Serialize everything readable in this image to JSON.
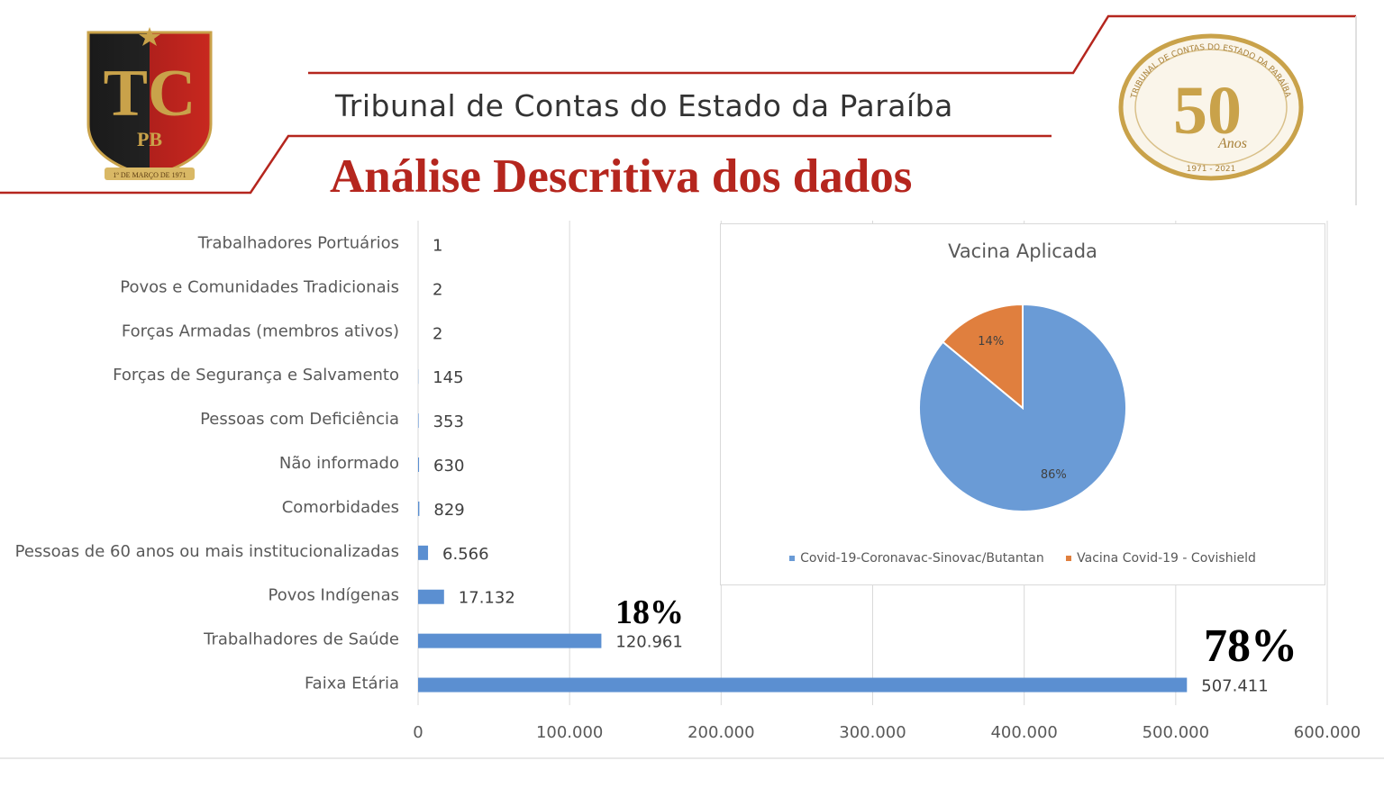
{
  "header": {
    "org_name": "Tribunal de Contas do Estado da Paraíba",
    "slide_title": "Análise Descritiva dos dados",
    "logo_left_text": [
      "TC",
      "PB",
      "1º DE MARÇO DE 1971"
    ],
    "logo_right_text": [
      "TRIBUNAL DE CONTAS DO ESTADO DA PARAÍBA",
      "50",
      "Anos",
      "1971 - 2021"
    ],
    "accent_color": "#b5261e"
  },
  "chart_data": [
    {
      "type": "bar",
      "orientation": "horizontal",
      "categories": [
        "Trabalhadores Portuários",
        "Povos e Comunidades Tradicionais",
        "Forças Armadas (membros ativos)",
        "Forças de Segurança e Salvamento",
        "Pessoas com  Deficiência",
        "Não informado",
        "Comorbidades",
        "Pessoas de 60 anos ou mais institucionalizadas",
        "Povos Indígenas",
        "Trabalhadores de Saúde",
        "Faixa Etária"
      ],
      "values": [
        1,
        2,
        2,
        145,
        353,
        630,
        829,
        6566,
        17132,
        120961,
        507411
      ],
      "value_labels": [
        "1",
        "2",
        "2",
        "145",
        "353",
        "630",
        "829",
        "6.566",
        "17.132",
        "120.961",
        "507.411"
      ],
      "xlim": [
        0,
        600000
      ],
      "xticks": [
        0,
        100000,
        200000,
        300000,
        400000,
        500000,
        600000
      ],
      "xtick_labels": [
        "0",
        "100.000",
        "200.000",
        "300.000",
        "400.000",
        "500.000",
        "600.000"
      ],
      "grid": "vertical",
      "bar_color": "#5b8fd1"
    },
    {
      "type": "pie",
      "title": "Vacina Aplicada",
      "labels": [
        "Covid-19-Coronavac-Sinovac/Butantan",
        "Vacina Covid-19 - Covishield"
      ],
      "values": [
        86,
        14
      ],
      "value_labels": [
        "86%",
        "14%"
      ],
      "colors": [
        "#6a9bd6",
        "#e07f3e"
      ],
      "legend": "bottom"
    }
  ],
  "annotations": {
    "pct_health_workers": "18%",
    "pct_age_group": "78%"
  }
}
